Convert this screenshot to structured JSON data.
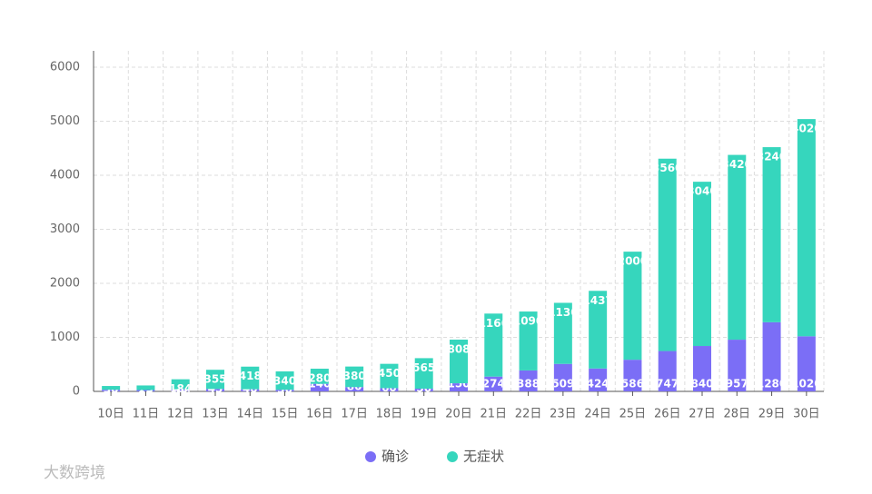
{
  "chart_data": {
    "type": "stacked_bar",
    "categories": [
      "10日",
      "11日",
      "12日",
      "13日",
      "14日",
      "15日",
      "16日",
      "17日",
      "18日",
      "19日",
      "20日",
      "21日",
      "22日",
      "23日",
      "24日",
      "25日",
      "26日",
      "27日",
      "28日",
      "29日",
      "30日"
    ],
    "series": [
      {
        "name": "确诊",
        "color": "#7b6ef6",
        "values": [
          30,
          25,
          40,
          45,
          40,
          30,
          140,
          80,
          60,
          50,
          150,
          274,
          388,
          509,
          424,
          586,
          747,
          840,
          957,
          1280,
          1020
        ]
      },
      {
        "name": "无症状",
        "color": "#36d6bd",
        "values": [
          70,
          85,
          184,
          355,
          418,
          340,
          280,
          380,
          450,
          565,
          808,
          1166,
          1090,
          1130,
          1437,
          2000,
          3560,
          3040,
          3420,
          3240,
          4020
        ]
      }
    ],
    "ylim": [
      0,
      6000
    ],
    "yticks": [
      0,
      1000,
      2000,
      3000,
      4000,
      5000,
      6000
    ],
    "grid": true,
    "legend": "bottom",
    "watermark": "大数跨境"
  }
}
